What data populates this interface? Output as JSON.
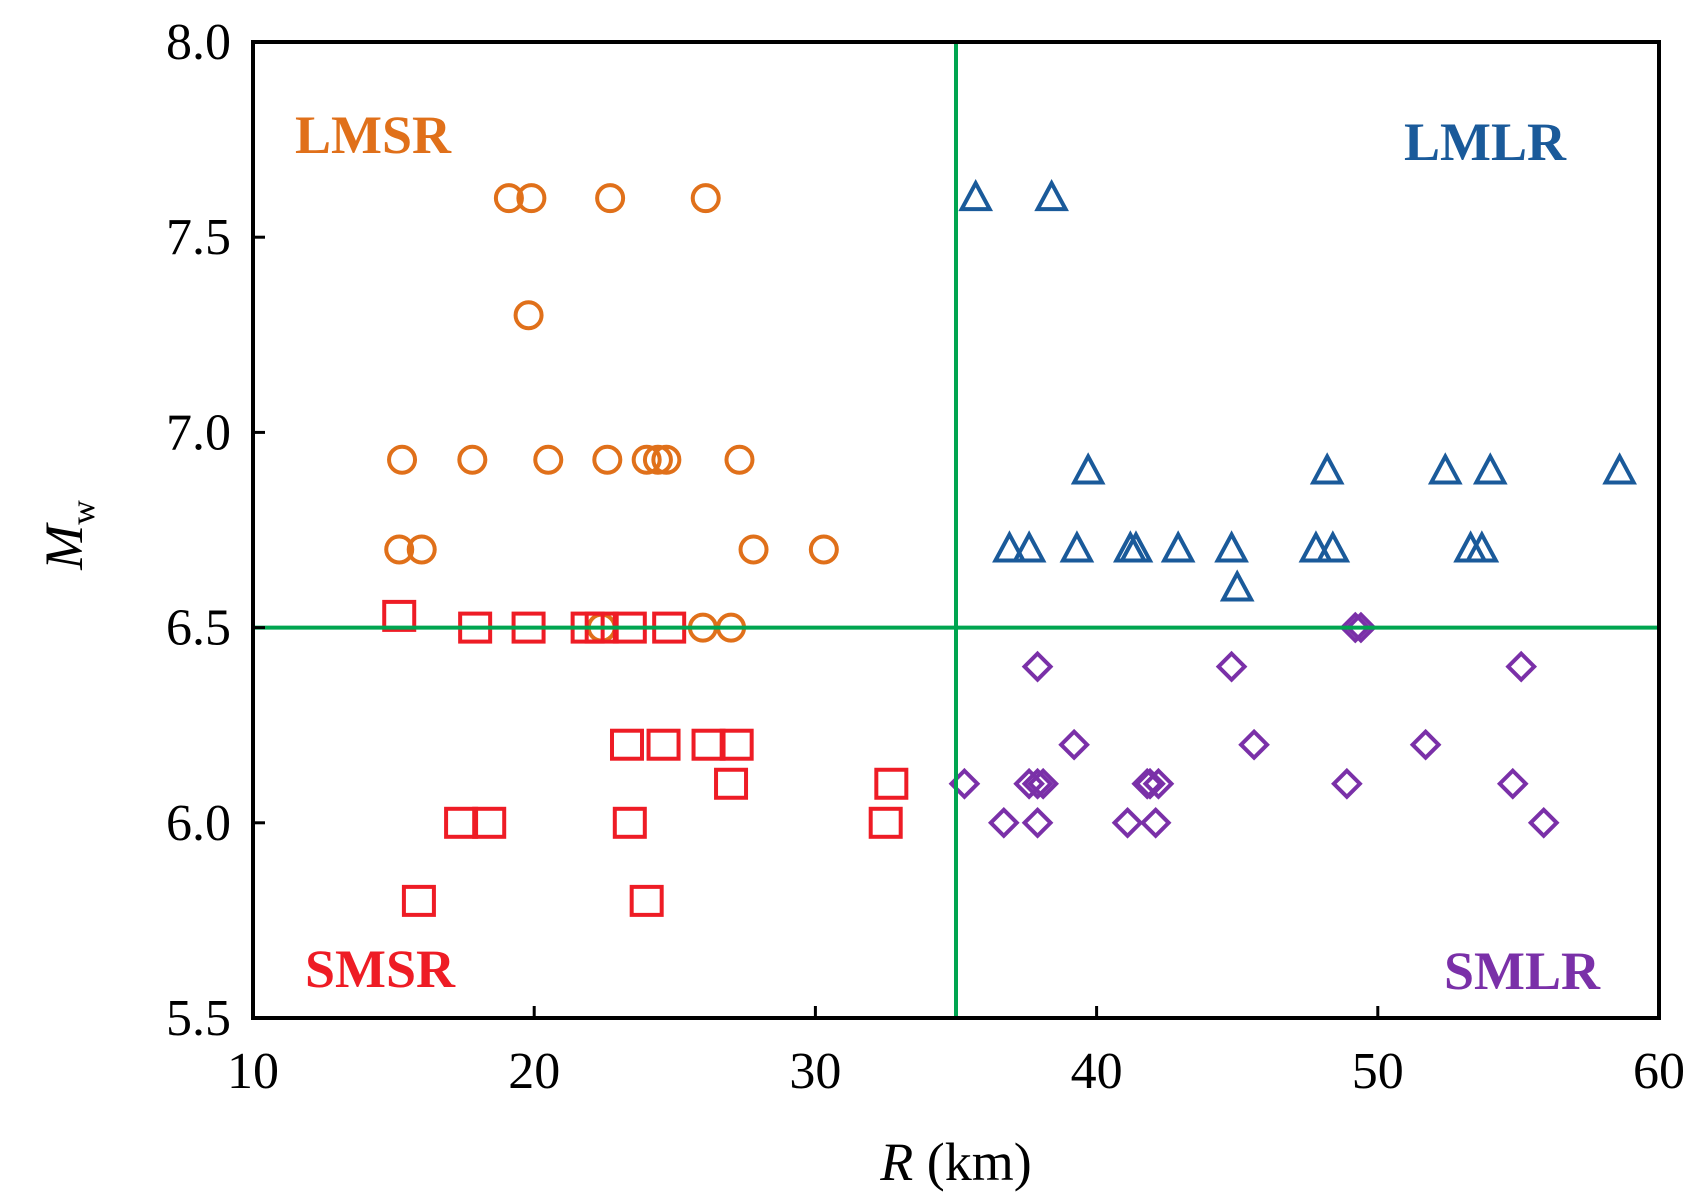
{
  "chart_data": {
    "type": "scatter",
    "title": "",
    "xlabel": {
      "var": "R",
      "unit": " (km)"
    },
    "ylabel": {
      "var": "M",
      "sub": "w"
    },
    "xlim": [
      10,
      60
    ],
    "ylim": [
      5.5,
      8.0
    ],
    "xticks": [
      "10",
      "20",
      "30",
      "40",
      "50",
      "60"
    ],
    "yticks": [
      "5.5",
      "6.0",
      "6.5",
      "7.0",
      "7.5",
      "8.0"
    ],
    "threshold_lines": {
      "x": 35,
      "y": 6.5,
      "color": "#00a550"
    },
    "regions": [
      {
        "label": "LMSR",
        "color": "#e0701a",
        "position": "top-left"
      },
      {
        "label": "LMLR",
        "color": "#1a5a9a",
        "position": "top-right"
      },
      {
        "label": "SMSR",
        "color": "#ee1c25",
        "position": "bottom-left"
      },
      {
        "label": "SMLR",
        "color": "#7a30a8",
        "position": "bottom-right"
      }
    ],
    "series": [
      {
        "name": "LMSR",
        "marker": "circle",
        "color": "#e0701a",
        "points": [
          [
            19.1,
            7.6
          ],
          [
            19.9,
            7.6
          ],
          [
            22.7,
            7.6
          ],
          [
            26.1,
            7.6
          ],
          [
            19.8,
            7.3
          ],
          [
            15.3,
            6.93
          ],
          [
            17.8,
            6.93
          ],
          [
            20.5,
            6.93
          ],
          [
            22.6,
            6.93
          ],
          [
            24.0,
            6.93
          ],
          [
            24.4,
            6.93
          ],
          [
            24.7,
            6.93
          ],
          [
            27.3,
            6.93
          ],
          [
            15.2,
            6.7
          ],
          [
            16.0,
            6.7
          ],
          [
            27.8,
            6.7
          ],
          [
            30.3,
            6.7
          ],
          [
            22.4,
            6.5
          ],
          [
            26.0,
            6.5
          ],
          [
            27.0,
            6.5
          ]
        ]
      },
      {
        "name": "LMLR",
        "marker": "triangle",
        "color": "#1a5a9a",
        "points": [
          [
            35.7,
            7.6
          ],
          [
            38.4,
            7.6
          ],
          [
            39.7,
            6.9
          ],
          [
            48.2,
            6.9
          ],
          [
            52.4,
            6.9
          ],
          [
            54.0,
            6.9
          ],
          [
            58.6,
            6.9
          ],
          [
            36.9,
            6.7
          ],
          [
            37.6,
            6.7
          ],
          [
            39.3,
            6.7
          ],
          [
            41.2,
            6.7
          ],
          [
            41.4,
            6.7
          ],
          [
            42.9,
            6.7
          ],
          [
            44.8,
            6.7
          ],
          [
            47.8,
            6.7
          ],
          [
            48.4,
            6.7
          ],
          [
            53.3,
            6.7
          ],
          [
            53.7,
            6.7
          ],
          [
            45.0,
            6.6
          ]
        ]
      },
      {
        "name": "SMSR",
        "marker": "square",
        "color": "#ee1c25",
        "points": [
          [
            15.2,
            6.53
          ],
          [
            17.9,
            6.5
          ],
          [
            19.8,
            6.5
          ],
          [
            21.9,
            6.5
          ],
          [
            22.4,
            6.5
          ],
          [
            23.4,
            6.5
          ],
          [
            24.8,
            6.5
          ],
          [
            23.3,
            6.2
          ],
          [
            24.6,
            6.2
          ],
          [
            26.2,
            6.2
          ],
          [
            27.2,
            6.2
          ],
          [
            27.0,
            6.1
          ],
          [
            32.7,
            6.1
          ],
          [
            17.4,
            6.0
          ],
          [
            18.4,
            6.0
          ],
          [
            23.4,
            6.0
          ],
          [
            32.5,
            6.0
          ],
          [
            15.9,
            5.8
          ],
          [
            24.0,
            5.8
          ]
        ]
      },
      {
        "name": "SMLR",
        "marker": "diamond",
        "color": "#7a30a8",
        "points": [
          [
            49.2,
            6.5
          ],
          [
            49.4,
            6.5
          ],
          [
            37.9,
            6.4
          ],
          [
            44.8,
            6.4
          ],
          [
            55.1,
            6.4
          ],
          [
            39.2,
            6.2
          ],
          [
            45.6,
            6.2
          ],
          [
            51.7,
            6.2
          ],
          [
            35.3,
            6.1
          ],
          [
            37.6,
            6.1
          ],
          [
            37.9,
            6.1
          ],
          [
            38.1,
            6.1
          ],
          [
            41.8,
            6.1
          ],
          [
            41.9,
            6.1
          ],
          [
            42.2,
            6.1
          ],
          [
            48.9,
            6.1
          ],
          [
            54.8,
            6.1
          ],
          [
            36.7,
            6.0
          ],
          [
            37.9,
            6.0
          ],
          [
            41.1,
            6.0
          ],
          [
            42.1,
            6.0
          ],
          [
            55.9,
            6.0
          ]
        ]
      }
    ]
  }
}
